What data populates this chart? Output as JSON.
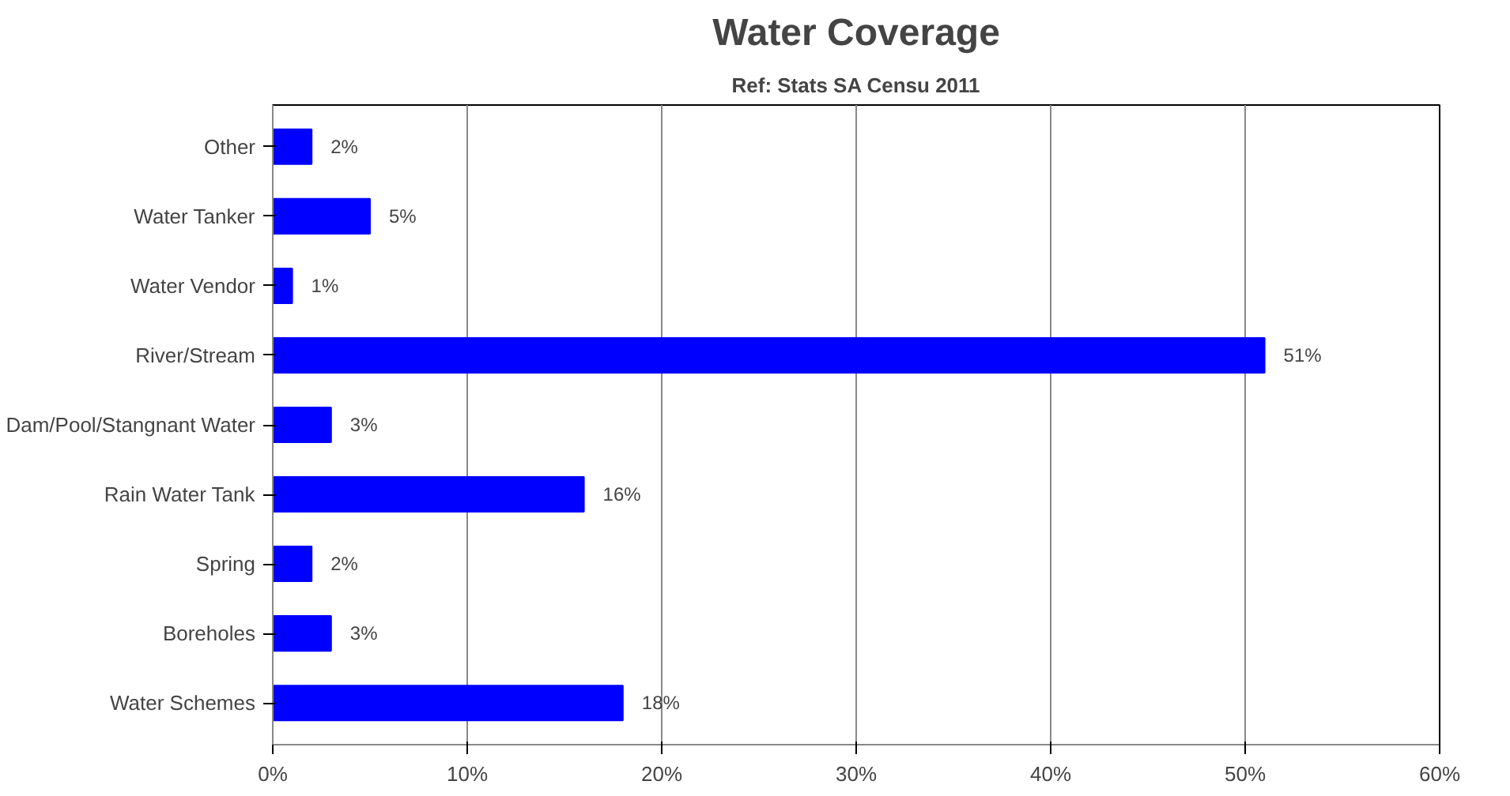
{
  "chart_data": {
    "type": "bar",
    "orientation": "horizontal",
    "title": "Water Coverage",
    "subtitle": "Ref: Stats SA Censu 2011",
    "categories": [
      "Other",
      "Water Tanker",
      "Water Vendor",
      "River/Stream",
      "Dam/Pool/Stangnant Water",
      "Rain Water Tank",
      "Spring",
      "Boreholes",
      "Water Schemes"
    ],
    "values": [
      2,
      5,
      1,
      51,
      3,
      16,
      2,
      3,
      18
    ],
    "color": "#0000ff",
    "value_labels": [
      "2%",
      "5%",
      "1%",
      "51%",
      "3%",
      "16%",
      "2%",
      "3%",
      "18%"
    ],
    "xlim": [
      0,
      60
    ],
    "xticks": [
      {
        "value": 0,
        "label": "0%"
      },
      {
        "value": 10,
        "label": "10%"
      },
      {
        "value": 20,
        "label": "20%"
      },
      {
        "value": 30,
        "label": "30%"
      },
      {
        "value": 40,
        "label": "40%"
      },
      {
        "value": 50,
        "label": "50%"
      },
      {
        "value": 60,
        "label": "60%"
      }
    ],
    "grid": "x"
  }
}
